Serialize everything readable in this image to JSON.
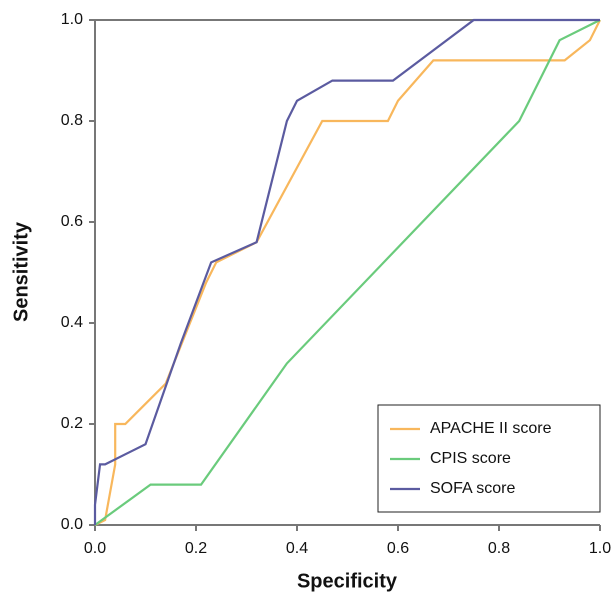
{
  "chart_data": {
    "type": "line",
    "xlabel": "Specificity",
    "ylabel": "Sensitivity",
    "xlim": [
      0,
      1
    ],
    "ylim": [
      0,
      1
    ],
    "xticks": [
      {
        "value": 0,
        "label": "0.0"
      },
      {
        "value": 0.2,
        "label": "0.2"
      },
      {
        "value": 0.4,
        "label": "0.4"
      },
      {
        "value": 0.6,
        "label": "0.6"
      },
      {
        "value": 0.8,
        "label": "0.8"
      },
      {
        "value": 1,
        "label": "1.0"
      }
    ],
    "yticks": [
      {
        "value": 0,
        "label": "0.0"
      },
      {
        "value": 0.2,
        "label": "0.2"
      },
      {
        "value": 0.4,
        "label": "0.4"
      },
      {
        "value": 0.6,
        "label": "0.6"
      },
      {
        "value": 0.8,
        "label": "0.8"
      },
      {
        "value": 1,
        "label": "1.0"
      }
    ],
    "legend": "lower right",
    "series": [
      {
        "name": "APACHE II score",
        "color": "#f8b75c",
        "x": [
          0,
          0.02,
          0.04,
          0.04,
          0.06,
          0.1,
          0.14,
          0.18,
          0.22,
          0.24,
          0.32,
          0.45,
          0.58,
          0.6,
          0.67,
          0.93,
          0.98,
          1
        ],
        "values": [
          0,
          0.01,
          0.12,
          0.2,
          0.2,
          0.24,
          0.28,
          0.38,
          0.48,
          0.52,
          0.56,
          0.8,
          0.8,
          0.84,
          0.92,
          0.92,
          0.96,
          1
        ]
      },
      {
        "name": "CPIS score",
        "color": "#6acb7c",
        "x": [
          0,
          0.11,
          0.21,
          0.38,
          0.84,
          0.92,
          1
        ],
        "values": [
          0,
          0.08,
          0.08,
          0.32,
          0.8,
          0.96,
          1
        ]
      },
      {
        "name": "SOFA score",
        "color": "#5b5ba0",
        "x": [
          0,
          0,
          0.01,
          0.02,
          0.1,
          0.17,
          0.23,
          0.32,
          0.38,
          0.4,
          0.47,
          0.59,
          0.75,
          1
        ],
        "values": [
          0,
          0.04,
          0.12,
          0.12,
          0.16,
          0.36,
          0.52,
          0.56,
          0.8,
          0.84,
          0.88,
          0.88,
          1,
          1
        ]
      }
    ]
  }
}
